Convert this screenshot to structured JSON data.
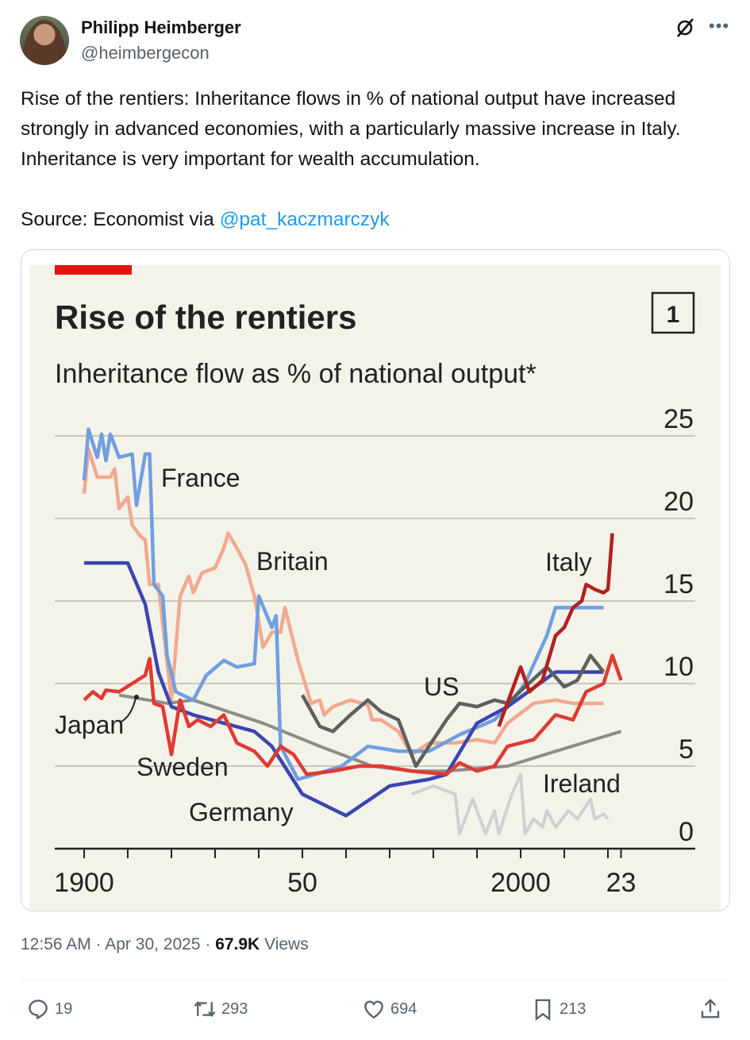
{
  "tweet": {
    "author_name": "Philipp Heimberger",
    "author_handle": "@heimbergecon",
    "text_line1": "Rise of the rentiers: Inheritance flows in % of national output have increased strongly in advanced economies, with a particularly massive increase in Italy. Inheritance is very important for wealth accumulation.",
    "source_prefix": "Source: Economist via ",
    "source_link": "@pat_kaczmarczyk",
    "time": "12:56 AM",
    "date": "Apr 30, 2025",
    "views_count": "67.9K",
    "views_label": "Views",
    "sep": " · "
  },
  "actions": {
    "replies": "19",
    "reposts": "293",
    "likes": "694",
    "bookmarks": "213"
  },
  "icons": [
    "grok-icon",
    "more-icon",
    "reply-icon",
    "repost-icon",
    "like-icon",
    "bookmark-icon",
    "share-icon"
  ],
  "chart_data": {
    "type": "line",
    "title": "Rise of the rentiers",
    "subtitle": "Inheritance flow as % of national output*",
    "chart_number": "1",
    "ylim": [
      0,
      25
    ],
    "yticks": [
      "0",
      "5",
      "10",
      "15",
      "20",
      "25"
    ],
    "xlim": [
      1900,
      2023
    ],
    "xtick_labels": [
      {
        "year": 1900,
        "label": "1900"
      },
      {
        "year": 1950,
        "label": "50"
      },
      {
        "year": 2000,
        "label": "2000"
      },
      {
        "year": 2023,
        "label": "23"
      }
    ],
    "grid": true,
    "colors": {
      "background": "#f4f3ea",
      "accent": "#e3120b"
    },
    "series": [
      {
        "name": "France",
        "color": "#6f9fe0",
        "points": [
          [
            1900,
            22.3
          ],
          [
            1901,
            25.4
          ],
          [
            1903,
            23.7
          ],
          [
            1904,
            25.1
          ],
          [
            1905,
            23.5
          ],
          [
            1906,
            25.1
          ],
          [
            1908,
            23.7
          ],
          [
            1911,
            23.9
          ],
          [
            1912,
            20.8
          ],
          [
            1914,
            23.9
          ],
          [
            1915,
            23.9
          ],
          [
            1916,
            16
          ],
          [
            1918,
            15.3
          ],
          [
            1919,
            11.7
          ],
          [
            1921,
            9.5
          ],
          [
            1925,
            9
          ],
          [
            1928,
            10.5
          ],
          [
            1932,
            11.4
          ],
          [
            1935,
            11
          ],
          [
            1939,
            11.2
          ],
          [
            1940,
            15.3
          ],
          [
            1943,
            13.4
          ],
          [
            1944,
            14.1
          ],
          [
            1945,
            6.2
          ],
          [
            1949,
            4.2
          ],
          [
            1953,
            4.5
          ],
          [
            1959,
            5
          ],
          [
            1965,
            6.2
          ],
          [
            1972,
            5.9
          ],
          [
            1979,
            5.9
          ],
          [
            1986,
            6.9
          ],
          [
            1994,
            7.8
          ],
          [
            1997,
            8.6
          ],
          [
            2001,
            10
          ],
          [
            2006,
            12.9
          ],
          [
            2008,
            14.6
          ],
          [
            2019,
            14.6
          ]
        ]
      },
      {
        "name": "Britain",
        "color": "#f2a98f",
        "points": [
          [
            1900,
            21.5
          ],
          [
            1901,
            24.2
          ],
          [
            1903,
            22.5
          ],
          [
            1906,
            22.5
          ],
          [
            1907,
            23
          ],
          [
            1908,
            20.6
          ],
          [
            1910,
            21.3
          ],
          [
            1911,
            19.6
          ],
          [
            1913,
            18.9
          ],
          [
            1914,
            18.7
          ],
          [
            1915,
            16
          ],
          [
            1917,
            16
          ],
          [
            1920,
            9
          ],
          [
            1922,
            15.3
          ],
          [
            1924,
            16.5
          ],
          [
            1925,
            15.5
          ],
          [
            1927,
            16.7
          ],
          [
            1930,
            17
          ],
          [
            1932,
            18.2
          ],
          [
            1933,
            19.1
          ],
          [
            1935,
            18.2
          ],
          [
            1937,
            17.2
          ],
          [
            1939,
            15.3
          ],
          [
            1941,
            12.2
          ],
          [
            1943,
            13.1
          ],
          [
            1945,
            13.1
          ],
          [
            1946,
            14.6
          ],
          [
            1949,
            11.4
          ],
          [
            1952,
            8.8
          ],
          [
            1954,
            9
          ],
          [
            1955,
            8.1
          ],
          [
            1957,
            8.6
          ],
          [
            1961,
            9
          ],
          [
            1965,
            8.7
          ],
          [
            1966,
            7.8
          ],
          [
            1968,
            7.8
          ],
          [
            1972,
            7.1
          ],
          [
            1975,
            5.7
          ],
          [
            1979,
            6.4
          ],
          [
            1985,
            6.4
          ],
          [
            1990,
            6.6
          ],
          [
            1994,
            6.4
          ],
          [
            1997,
            7.6
          ],
          [
            2003,
            8.8
          ],
          [
            2008,
            9
          ],
          [
            2012,
            8.8
          ],
          [
            2019,
            8.8
          ]
        ]
      },
      {
        "name": "Germany",
        "color": "#3b45b0",
        "points": [
          [
            1900,
            17.3
          ],
          [
            1910,
            17.3
          ],
          [
            1914,
            14.8
          ],
          [
            1917,
            10.7
          ],
          [
            1920,
            8.6
          ],
          [
            1925,
            8.1
          ],
          [
            1932,
            7.6
          ],
          [
            1939,
            7.1
          ],
          [
            1943,
            6.2
          ],
          [
            1950,
            3.3
          ],
          [
            1960,
            2
          ],
          [
            1970,
            3.8
          ],
          [
            1979,
            4.2
          ],
          [
            1983,
            4.5
          ],
          [
            1990,
            7.6
          ],
          [
            1997,
            8.6
          ],
          [
            2008,
            10.7
          ],
          [
            2019,
            10.7
          ]
        ]
      },
      {
        "name": "Japan",
        "color": "#8c8c88",
        "points": [
          [
            1908,
            9.3
          ],
          [
            1919,
            8.8
          ],
          [
            1925,
            9
          ],
          [
            1941,
            7.6
          ],
          [
            1954,
            6.2
          ],
          [
            1966,
            5
          ],
          [
            1975,
            4.7
          ],
          [
            1983,
            4.7
          ],
          [
            1997,
            5
          ],
          [
            2008,
            5.9
          ],
          [
            2023,
            7.1
          ]
        ]
      },
      {
        "name": "Sweden",
        "color": "#e03a32",
        "points": [
          [
            1900,
            9
          ],
          [
            1902,
            9.5
          ],
          [
            1904,
            9.1
          ],
          [
            1905,
            9.6
          ],
          [
            1908,
            9.5
          ],
          [
            1911,
            10
          ],
          [
            1914,
            10.5
          ],
          [
            1915,
            11.5
          ],
          [
            1916,
            8.8
          ],
          [
            1918,
            8.6
          ],
          [
            1920,
            5.7
          ],
          [
            1922,
            9
          ],
          [
            1924,
            7.4
          ],
          [
            1926,
            7.8
          ],
          [
            1929,
            7.4
          ],
          [
            1932,
            8.1
          ],
          [
            1935,
            6.4
          ],
          [
            1939,
            5.9
          ],
          [
            1942,
            5
          ],
          [
            1945,
            6.2
          ],
          [
            1948,
            5.7
          ],
          [
            1951,
            4.5
          ],
          [
            1957,
            4.7
          ],
          [
            1963,
            5
          ],
          [
            1968,
            5
          ],
          [
            1975,
            4.7
          ],
          [
            1983,
            4.5
          ],
          [
            1986,
            5.2
          ],
          [
            1990,
            4.7
          ],
          [
            1994,
            5
          ],
          [
            1997,
            6.2
          ],
          [
            2003,
            6.6
          ],
          [
            2008,
            8.1
          ],
          [
            2012,
            7.8
          ],
          [
            2015,
            9.5
          ],
          [
            2019,
            10
          ],
          [
            2021,
            11.7
          ],
          [
            2023,
            10.2
          ]
        ]
      },
      {
        "name": "US",
        "color": "#5f605e",
        "points": [
          [
            1950,
            9.3
          ],
          [
            1954,
            7.4
          ],
          [
            1957,
            7.1
          ],
          [
            1961,
            8.1
          ],
          [
            1965,
            9
          ],
          [
            1968,
            8.3
          ],
          [
            1972,
            7.8
          ],
          [
            1976,
            5
          ],
          [
            1983,
            7.8
          ],
          [
            1986,
            8.8
          ],
          [
            1990,
            8.6
          ],
          [
            1994,
            9
          ],
          [
            1997,
            8.8
          ],
          [
            2001,
            9.8
          ],
          [
            2006,
            11
          ],
          [
            2010,
            9.8
          ],
          [
            2013,
            10.2
          ],
          [
            2016,
            11.7
          ],
          [
            2019,
            10.7
          ]
        ]
      },
      {
        "name": "Italy",
        "color": "#b2201f",
        "points": [
          [
            1995,
            7.4
          ],
          [
            2000,
            11
          ],
          [
            2002,
            9.5
          ],
          [
            2005,
            10.2
          ],
          [
            2008,
            12.9
          ],
          [
            2010,
            13.4
          ],
          [
            2012,
            14.6
          ],
          [
            2014,
            15
          ],
          [
            2015,
            16
          ],
          [
            2017,
            15.7
          ],
          [
            2019,
            15.5
          ],
          [
            2020,
            15.7
          ],
          [
            2021,
            19.1
          ]
        ]
      },
      {
        "name": "Ireland",
        "color": "#cfd0d0",
        "points": [
          [
            1975,
            3.3
          ],
          [
            1980,
            3.8
          ],
          [
            1985,
            3.3
          ],
          [
            1986,
            0.9
          ],
          [
            1989,
            3
          ],
          [
            1992,
            0.9
          ],
          [
            1994,
            2.3
          ],
          [
            1995,
            0.9
          ],
          [
            1998,
            3.3
          ],
          [
            2000,
            4.5
          ],
          [
            2001,
            0.9
          ],
          [
            2003,
            1.8
          ],
          [
            2005,
            1.3
          ],
          [
            2006,
            2.3
          ],
          [
            2008,
            1.3
          ],
          [
            2011,
            2.3
          ],
          [
            2013,
            1.8
          ],
          [
            2016,
            3
          ],
          [
            2017,
            1.8
          ],
          [
            2019,
            2.1
          ],
          [
            2020,
            1.8
          ]
        ]
      }
    ]
  }
}
